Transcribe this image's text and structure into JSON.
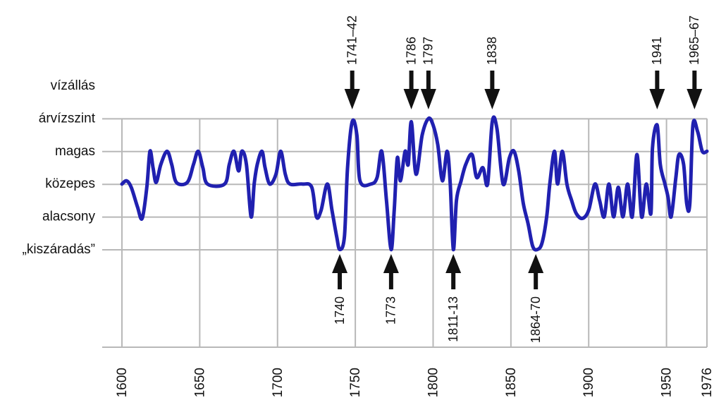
{
  "chart_data": {
    "type": "line",
    "title": "",
    "xlabel": "",
    "ylabel": "",
    "xlim": [
      1600,
      1976
    ],
    "x_ticks": [
      "1600",
      "1650",
      "1700",
      "1750",
      "1800",
      "1850",
      "1900",
      "1950",
      "1976"
    ],
    "y_levels": [
      "vízállás",
      "árvízszint",
      "magas",
      "közepes",
      "alacsony",
      "„kiszáradás”"
    ],
    "y_scale": {
      "árvízszint": 4,
      "magas": 3,
      "közepes": 2,
      "alacsony": 1,
      "„kiszáradás”": 0
    },
    "ylim": [
      -3,
      4
    ],
    "grid": true,
    "colors": {
      "series": "#2020b0",
      "grid": "#b8b8b8",
      "arrow": "#111111"
    },
    "series": [
      {
        "points": [
          [
            1600,
            2.0
          ],
          [
            1603,
            2.1
          ],
          [
            1606,
            1.9
          ],
          [
            1610,
            1.3
          ],
          [
            1613,
            0.95
          ],
          [
            1616,
            1.9
          ],
          [
            1618,
            3.0
          ],
          [
            1620,
            2.5
          ],
          [
            1622,
            2.05
          ],
          [
            1625,
            2.6
          ],
          [
            1629,
            3.0
          ],
          [
            1632,
            2.6
          ],
          [
            1635,
            2.05
          ],
          [
            1642,
            2.05
          ],
          [
            1646,
            2.6
          ],
          [
            1649,
            3.0
          ],
          [
            1652,
            2.5
          ],
          [
            1655,
            2.0
          ],
          [
            1666,
            2.0
          ],
          [
            1669,
            2.6
          ],
          [
            1672,
            3.0
          ],
          [
            1675,
            2.4
          ],
          [
            1677,
            3.0
          ],
          [
            1680,
            2.6
          ],
          [
            1683,
            1.0
          ],
          [
            1685,
            2.0
          ],
          [
            1687,
            2.6
          ],
          [
            1690,
            3.0
          ],
          [
            1692,
            2.5
          ],
          [
            1695,
            2.0
          ],
          [
            1699,
            2.3
          ],
          [
            1702,
            3.0
          ],
          [
            1705,
            2.3
          ],
          [
            1708,
            2.0
          ],
          [
            1716,
            2.0
          ],
          [
            1722,
            1.9
          ],
          [
            1725,
            1.0
          ],
          [
            1728,
            1.2
          ],
          [
            1732,
            2.0
          ],
          [
            1735,
            1.2
          ],
          [
            1738,
            0.4
          ],
          [
            1740,
            0.0
          ],
          [
            1743,
            0.4
          ],
          [
            1745,
            2.5
          ],
          [
            1748,
            3.9
          ],
          [
            1751,
            3.5
          ],
          [
            1753,
            2.1
          ],
          [
            1760,
            2.0
          ],
          [
            1764,
            2.2
          ],
          [
            1767,
            3.0
          ],
          [
            1770,
            1.5
          ],
          [
            1773,
            0.0
          ],
          [
            1775,
            1.2
          ],
          [
            1777,
            2.8
          ],
          [
            1779,
            2.1
          ],
          [
            1782,
            3.0
          ],
          [
            1784,
            2.6
          ],
          [
            1786,
            3.9
          ],
          [
            1789,
            2.3
          ],
          [
            1793,
            3.5
          ],
          [
            1797,
            4.0
          ],
          [
            1800,
            3.8
          ],
          [
            1803,
            3.2
          ],
          [
            1806,
            2.1
          ],
          [
            1809,
            3.0
          ],
          [
            1811,
            2.0
          ],
          [
            1813,
            0.0
          ],
          [
            1815,
            1.5
          ],
          [
            1818,
            2.1
          ],
          [
            1821,
            2.6
          ],
          [
            1825,
            2.9
          ],
          [
            1828,
            2.2
          ],
          [
            1832,
            2.5
          ],
          [
            1835,
            2.0
          ],
          [
            1838,
            3.9
          ],
          [
            1841,
            3.7
          ],
          [
            1845,
            2.0
          ],
          [
            1849,
            2.8
          ],
          [
            1852,
            3.0
          ],
          [
            1855,
            2.4
          ],
          [
            1858,
            1.4
          ],
          [
            1861,
            0.8
          ],
          [
            1864,
            0.1
          ],
          [
            1867,
            0.0
          ],
          [
            1870,
            0.2
          ],
          [
            1873,
            1.0
          ],
          [
            1875,
            2.0
          ],
          [
            1878,
            3.0
          ],
          [
            1880,
            2.0
          ],
          [
            1883,
            3.0
          ],
          [
            1886,
            2.0
          ],
          [
            1889,
            1.5
          ],
          [
            1892,
            1.1
          ],
          [
            1896,
            0.95
          ],
          [
            1900,
            1.2
          ],
          [
            1904,
            2.0
          ],
          [
            1907,
            1.5
          ],
          [
            1910,
            1.0
          ],
          [
            1913,
            2.0
          ],
          [
            1916,
            1.0
          ],
          [
            1919,
            1.9
          ],
          [
            1922,
            1.0
          ],
          [
            1925,
            2.0
          ],
          [
            1928,
            1.0
          ],
          [
            1931,
            2.9
          ],
          [
            1934,
            1.0
          ],
          [
            1937,
            2.0
          ],
          [
            1940,
            1.1
          ],
          [
            1941,
            3.1
          ],
          [
            1944,
            3.8
          ],
          [
            1946,
            2.6
          ],
          [
            1949,
            2.0
          ],
          [
            1951,
            1.6
          ],
          [
            1953,
            1.0
          ],
          [
            1956,
            2.2
          ],
          [
            1958,
            2.9
          ],
          [
            1961,
            2.6
          ],
          [
            1963,
            1.4
          ],
          [
            1965,
            1.4
          ],
          [
            1967,
            3.8
          ],
          [
            1970,
            3.6
          ],
          [
            1973,
            3.0
          ],
          [
            1976,
            3.0
          ]
        ]
      }
    ],
    "annotations": [
      {
        "label": "1741–42",
        "x": 1748,
        "position": "top"
      },
      {
        "label": "1786",
        "x": 1786,
        "position": "top"
      },
      {
        "label": "1797",
        "x": 1797,
        "position": "top"
      },
      {
        "label": "1838",
        "x": 1838,
        "position": "top"
      },
      {
        "label": "1941",
        "x": 1944,
        "position": "top"
      },
      {
        "label": "1965–67",
        "x": 1968,
        "position": "top"
      },
      {
        "label": "1740",
        "x": 1740,
        "position": "bottom"
      },
      {
        "label": "1773",
        "x": 1773,
        "position": "bottom"
      },
      {
        "label": "1811-13",
        "x": 1813,
        "position": "bottom"
      },
      {
        "label": "1864-70",
        "x": 1866,
        "position": "bottom"
      }
    ]
  }
}
